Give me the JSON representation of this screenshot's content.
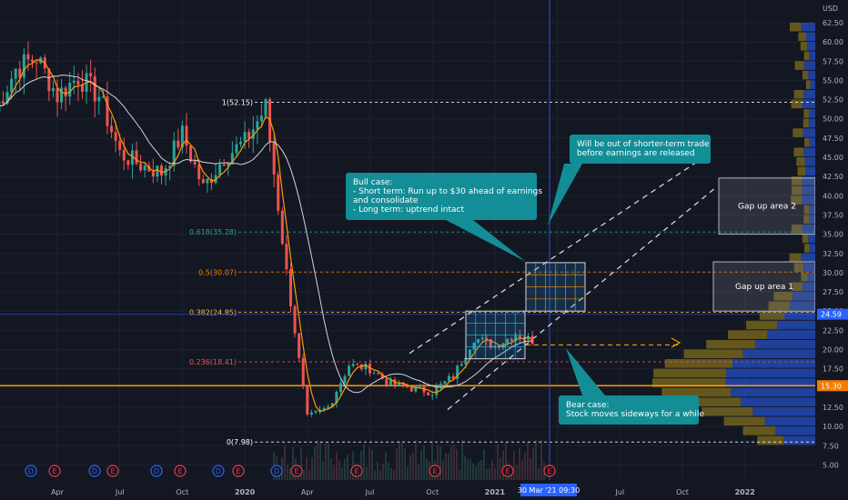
{
  "chart_data": {
    "type": "candlestick",
    "currency": "USD",
    "ylim": [
      5,
      64
    ],
    "y_ticks": [
      5.0,
      7.5,
      10.0,
      12.5,
      15.0,
      17.5,
      20.0,
      22.5,
      25.0,
      27.5,
      30.0,
      32.5,
      35.0,
      37.5,
      40.0,
      42.5,
      45.0,
      47.5,
      50.0,
      52.5,
      55.0,
      57.5,
      60.0,
      62.5
    ],
    "x_ticks": [
      "Apr",
      "Jul",
      "Oct",
      "2020",
      "Apr",
      "Jul",
      "Oct",
      "2021",
      "Apr",
      "Jul",
      "Oct",
      "2022"
    ],
    "x_tick_major": [
      "2020",
      "2021",
      "2022"
    ],
    "price_series": [
      {
        "date": "2019-01",
        "close": 51.0
      },
      {
        "date": "2019-02",
        "close": 56.5
      },
      {
        "date": "2019-03",
        "close": 58.0
      },
      {
        "date": "2019-04",
        "close": 53.0
      },
      {
        "date": "2019-05",
        "close": 55.5
      },
      {
        "date": "2019-06",
        "close": 53.0
      },
      {
        "date": "2019-07",
        "close": 45.5
      },
      {
        "date": "2019-08",
        "close": 44.0
      },
      {
        "date": "2019-09",
        "close": 43.0
      },
      {
        "date": "2019-10",
        "close": 48.0
      },
      {
        "date": "2019-11",
        "close": 41.0
      },
      {
        "date": "2019-12",
        "close": 45.0
      },
      {
        "date": "2020-01",
        "close": 47.0
      },
      {
        "date": "2020-02",
        "close": 51.5
      },
      {
        "date": "2020-03",
        "close": 30.0
      },
      {
        "date": "2020-04",
        "close": 11.0
      },
      {
        "date": "2020-05",
        "close": 12.5
      },
      {
        "date": "2020-06",
        "close": 18.0
      },
      {
        "date": "2020-07",
        "close": 17.5
      },
      {
        "date": "2020-08",
        "close": 15.5
      },
      {
        "date": "2020-09",
        "close": 15.0
      },
      {
        "date": "2020-10",
        "close": 14.5
      },
      {
        "date": "2020-11",
        "close": 16.5
      },
      {
        "date": "2020-12",
        "close": 21.5
      },
      {
        "date": "2021-01",
        "close": 20.5
      },
      {
        "date": "2021-02",
        "close": 22.0
      },
      {
        "date": "2021-03",
        "close": 21.0
      }
    ],
    "price_marker": {
      "value": 24.59,
      "label": "24.59"
    },
    "hline_marker": {
      "value": 15.3,
      "label": "15.30"
    },
    "crosshair_label": "30 Mar '21   09:30",
    "fib_levels": [
      {
        "label": "1(52.15)",
        "value": 52.15,
        "color": "#ffffff"
      },
      {
        "label": "0.618(35.28)",
        "value": 35.28,
        "color": "#26a69a"
      },
      {
        "label": "0.5(30.07)",
        "value": 30.07,
        "color": "#f57c00"
      },
      {
        "label": "0.382(24.85)",
        "value": 24.85,
        "color": "#ffb74d"
      },
      {
        "label": "0.236(18.41)",
        "value": 18.41,
        "color": "#ef5350"
      },
      {
        "label": "0(7.98)",
        "value": 7.98,
        "color": "#ffffff"
      }
    ],
    "zones": [
      {
        "label": "Gap up area 2",
        "low": 35.0,
        "high": 42.3
      },
      {
        "label": "Gap up area 1",
        "low": 25.0,
        "high": 31.4
      }
    ],
    "callouts": [
      {
        "name": "bull-case",
        "lines": [
          "Bull case:",
          "- Short term: Run up to $30 ahead of earnings",
          "and consolidate",
          "- Long term: uptrend intact"
        ]
      },
      {
        "name": "earnings-note",
        "lines": [
          "Will be out of shorter-term trade",
          "before earnings are released"
        ]
      },
      {
        "name": "bear-case",
        "lines": [
          "Bear case:",
          "Stock moves sideways for a while"
        ]
      }
    ],
    "event_badges": {
      "dividends": "D",
      "earnings": "E"
    },
    "colors": {
      "background": "#131722",
      "grid": "#1e2230",
      "candle_up": "#26a69a",
      "candle_down": "#ef5350",
      "ma_fast": "#ff9800",
      "ma_slow": "#d1d4dc",
      "callout_fill": "#138d96",
      "volume_profile_up": "#2962ff",
      "volume_profile_down": "#806d1e"
    }
  }
}
